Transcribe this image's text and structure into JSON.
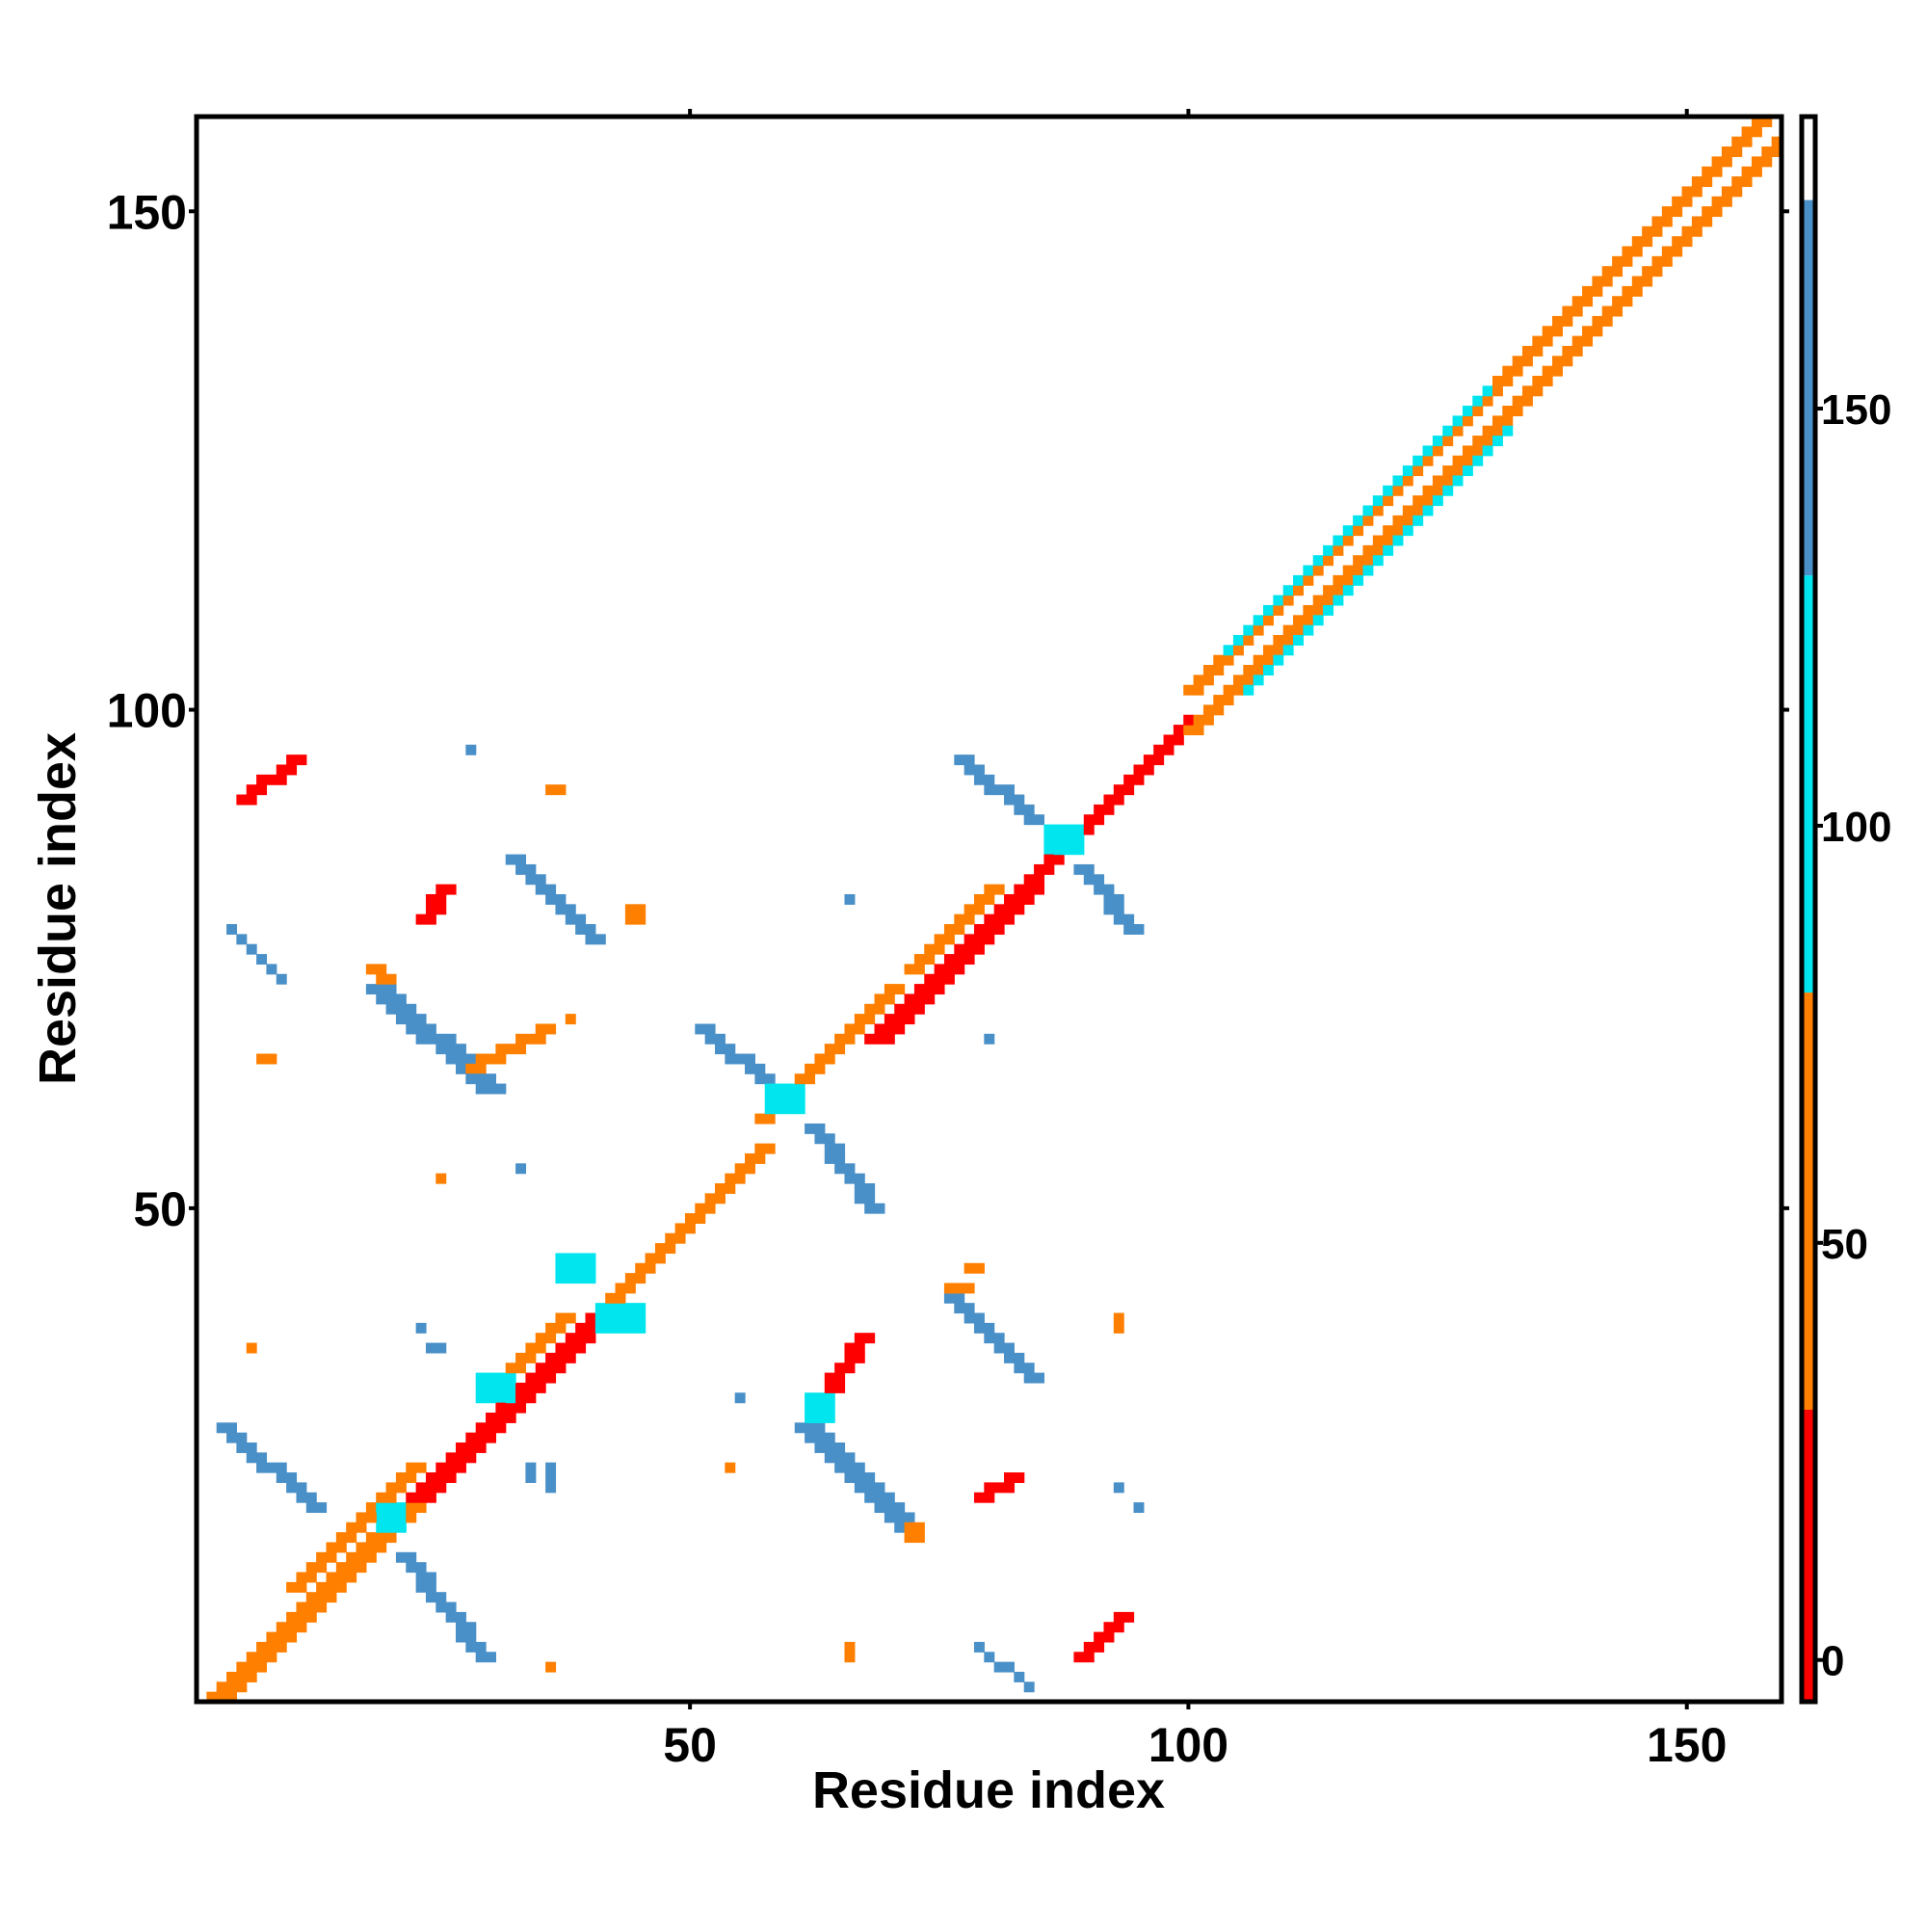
{
  "chart_data": {
    "type": "heatmap",
    "title": "",
    "xlabel": "Residue index",
    "ylabel": "Residue index",
    "xlim": [
      1,
      159
    ],
    "ylim": [
      1,
      159
    ],
    "x_ticks": [
      50,
      100,
      150
    ],
    "y_ticks": [
      50,
      100,
      150
    ],
    "grid": false,
    "colorbar": {
      "range": [
        -5,
        185
      ],
      "ticks": [
        0,
        50,
        100,
        150
      ],
      "stops": [
        {
          "from": -5,
          "to": 30,
          "color": "#ff0000"
        },
        {
          "from": 30,
          "to": 80,
          "color": "#ff7f00"
        },
        {
          "from": 80,
          "to": 130,
          "color": "#00e5ee"
        },
        {
          "from": 130,
          "to": 175,
          "color": "#4a90c8"
        },
        {
          "from": 175,
          "to": 185,
          "color": "#ffffff"
        }
      ]
    },
    "segments": [
      {
        "from": [
          1,
          1
        ],
        "to": [
          159,
          159
        ],
        "value": 180,
        "width": 1
      },
      {
        "from": [
          2,
          1
        ],
        "to": [
          29,
          28
        ],
        "value": 30,
        "width": 3
      },
      {
        "from": [
          10,
          12
        ],
        "to": [
          22,
          24
        ],
        "value": 50,
        "width": 2
      },
      {
        "from": [
          22,
          21
        ],
        "to": [
          41,
          40
        ],
        "value": 10,
        "width": 3
      },
      {
        "from": [
          30,
          32
        ],
        "to": [
          37,
          39
        ],
        "value": 50,
        "width": 2
      },
      {
        "from": [
          42,
          41
        ],
        "to": [
          57,
          56
        ],
        "value": 30,
        "width": 2
      },
      {
        "from": [
          57,
          59
        ],
        "to": [
          70,
          72
        ],
        "value": 30,
        "width": 2
      },
      {
        "from": [
          68,
          67
        ],
        "to": [
          83,
          82
        ],
        "value": 10,
        "width": 3
      },
      {
        "from": [
          72,
          74
        ],
        "to": [
          80,
          82
        ],
        "value": 50,
        "width": 2
      },
      {
        "from": [
          84,
          83
        ],
        "to": [
          100,
          99
        ],
        "value": 20,
        "width": 2
      },
      {
        "from": [
          100,
          102
        ],
        "to": [
          159,
          161
        ],
        "value": 60,
        "width": 2
      },
      {
        "from": [
          100,
          98
        ],
        "to": [
          159,
          157
        ],
        "value": 55,
        "width": 2
      },
      {
        "from": [
          104,
          106
        ],
        "to": [
          130,
          132
        ],
        "value": 110,
        "width": 1
      },
      {
        "from": [
          106,
          102
        ],
        "to": [
          132,
          128
        ],
        "value": 110,
        "width": 1
      },
      {
        "from": [
          3,
          28
        ],
        "to": [
          12,
          20
        ],
        "value": 150,
        "width": 2
      },
      {
        "from": [
          21,
          15
        ],
        "to": [
          29,
          5
        ],
        "value": 150,
        "width": 2
      },
      {
        "from": [
          18,
          72
        ],
        "to": [
          29,
          62
        ],
        "value": 150,
        "width": 3
      },
      {
        "from": [
          32,
          85
        ],
        "to": [
          40,
          77
        ],
        "value": 150,
        "width": 2
      },
      {
        "from": [
          51,
          68
        ],
        "to": [
          58,
          62
        ],
        "value": 150,
        "width": 2
      },
      {
        "from": [
          62,
          58
        ],
        "to": [
          68,
          50
        ],
        "value": 150,
        "width": 2
      },
      {
        "from": [
          61,
          28
        ],
        "to": [
          71,
          18
        ],
        "value": 150,
        "width": 3
      },
      {
        "from": [
          76,
          41
        ],
        "to": [
          84,
          33
        ],
        "value": 150,
        "width": 2
      },
      {
        "from": [
          77,
          95
        ],
        "to": [
          84,
          89
        ],
        "value": 150,
        "width": 2
      },
      {
        "from": [
          89,
          84
        ],
        "to": [
          94,
          78
        ],
        "value": 150,
        "width": 2
      },
      {
        "from": [
          4,
          78
        ],
        "to": [
          9,
          73
        ],
        "value": 150,
        "width": 1
      },
      {
        "from": [
          79,
          6
        ],
        "to": [
          84,
          2
        ],
        "value": 150,
        "width": 1
      },
      {
        "from": [
          18,
          74
        ],
        "to": [
          19,
          73
        ],
        "value": 30,
        "width": 2
      },
      {
        "from": [
          28,
          64
        ],
        "to": [
          35,
          68
        ],
        "value": 30,
        "width": 2
      },
      {
        "from": [
          23,
          79
        ],
        "to": [
          25,
          82
        ],
        "value": 20,
        "width": 2
      },
      {
        "from": [
          5,
          91
        ],
        "to": [
          10,
          95
        ],
        "value": 20,
        "width": 2
      },
      {
        "from": [
          63,
          31
        ],
        "to": [
          67,
          37
        ],
        "value": 20,
        "width": 2
      },
      {
        "from": [
          79,
          21
        ],
        "to": [
          82,
          23
        ],
        "value": 20,
        "width": 2
      },
      {
        "from": [
          89,
          5
        ],
        "to": [
          93,
          9
        ],
        "value": 20,
        "width": 2
      }
    ],
    "blobs": [
      {
        "x": 19,
        "y": 18,
        "w": 3,
        "h": 3,
        "value": 100
      },
      {
        "x": 29,
        "y": 31,
        "w": 4,
        "h": 3,
        "value": 100
      },
      {
        "x": 37,
        "y": 43,
        "w": 4,
        "h": 3,
        "value": 100
      },
      {
        "x": 41,
        "y": 38,
        "w": 5,
        "h": 3,
        "value": 100
      },
      {
        "x": 58,
        "y": 60,
        "w": 4,
        "h": 3,
        "value": 100
      },
      {
        "x": 86,
        "y": 86,
        "w": 4,
        "h": 3,
        "value": 100
      },
      {
        "x": 62,
        "y": 29,
        "w": 3,
        "h": 3,
        "value": 100
      },
      {
        "x": 44,
        "y": 79,
        "w": 2,
        "h": 2,
        "value": 60
      },
      {
        "x": 76,
        "y": 42,
        "w": 3,
        "h": 1,
        "value": 60
      },
      {
        "x": 78,
        "y": 44,
        "w": 2,
        "h": 1,
        "value": 60
      },
      {
        "x": 72,
        "y": 17,
        "w": 2,
        "h": 2,
        "value": 40
      },
      {
        "x": 36,
        "y": 92,
        "w": 2,
        "h": 1,
        "value": 50
      },
      {
        "x": 93,
        "y": 38,
        "w": 1,
        "h": 2,
        "value": 50
      },
      {
        "x": 66,
        "y": 5,
        "w": 1,
        "h": 2,
        "value": 50
      },
      {
        "x": 36,
        "y": 4,
        "w": 1,
        "h": 1,
        "value": 50
      },
      {
        "x": 6,
        "y": 36,
        "w": 1,
        "h": 1,
        "value": 50
      },
      {
        "x": 7,
        "y": 65,
        "w": 2,
        "h": 1,
        "value": 50
      },
      {
        "x": 38,
        "y": 69,
        "w": 1,
        "h": 1,
        "value": 50
      },
      {
        "x": 54,
        "y": 24,
        "w": 1,
        "h": 1,
        "value": 30
      },
      {
        "x": 25,
        "y": 53,
        "w": 1,
        "h": 1,
        "value": 30
      },
      {
        "x": 28,
        "y": 96,
        "w": 1,
        "h": 1,
        "value": 150
      },
      {
        "x": 33,
        "y": 54,
        "w": 1,
        "h": 1,
        "value": 150
      },
      {
        "x": 66,
        "y": 81,
        "w": 1,
        "h": 1,
        "value": 150
      },
      {
        "x": 80,
        "y": 67,
        "w": 1,
        "h": 1,
        "value": 150
      },
      {
        "x": 55,
        "y": 31,
        "w": 1,
        "h": 1,
        "value": 150
      },
      {
        "x": 34,
        "y": 23,
        "w": 1,
        "h": 2,
        "value": 150
      },
      {
        "x": 36,
        "y": 22,
        "w": 1,
        "h": 3,
        "value": 150
      },
      {
        "x": 24,
        "y": 36,
        "w": 2,
        "h": 1,
        "value": 150
      },
      {
        "x": 23,
        "y": 38,
        "w": 1,
        "h": 1,
        "value": 150
      },
      {
        "x": 93,
        "y": 22,
        "w": 1,
        "h": 1,
        "value": 150
      },
      {
        "x": 95,
        "y": 20,
        "w": 1,
        "h": 1,
        "value": 150
      }
    ]
  }
}
